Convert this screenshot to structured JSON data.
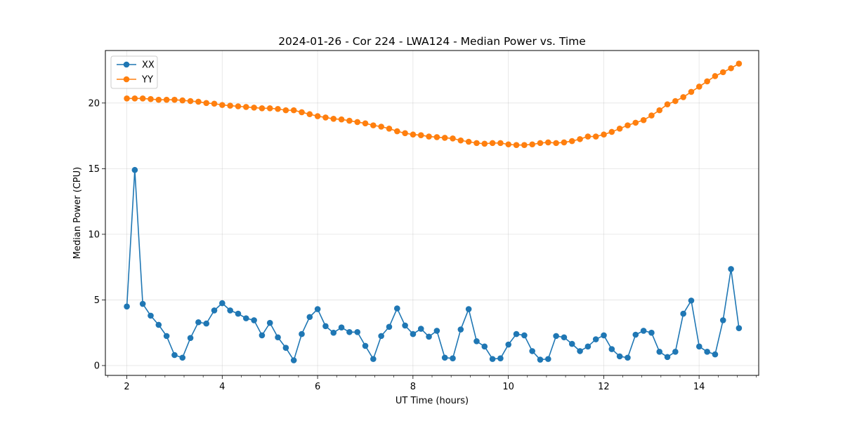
{
  "chart_data": {
    "type": "line",
    "title": "2024-01-26 - Cor 224 - LWA124 - Median Power vs. Time",
    "xlabel": "UT Time (hours)",
    "ylabel": "Median Power (CPU)",
    "xlim": [
      1.55,
      15.25
    ],
    "ylim": [
      -0.75,
      24.0
    ],
    "xticks": [
      2,
      4,
      6,
      8,
      10,
      12,
      14
    ],
    "yticks": [
      0,
      5,
      10,
      15,
      20
    ],
    "grid": true,
    "legend_position": "top-left",
    "x_start": 2.0,
    "x_step": 0.1667,
    "series": [
      {
        "name": "XX",
        "color": "#1f77b4",
        "values": [
          4.5,
          14.9,
          4.7,
          3.8,
          3.1,
          2.25,
          0.8,
          0.6,
          2.1,
          3.3,
          3.2,
          4.2,
          4.75,
          4.2,
          3.95,
          3.6,
          3.45,
          2.3,
          3.25,
          2.15,
          1.35,
          0.4,
          2.4,
          3.7,
          4.3,
          3.0,
          2.5,
          2.9,
          2.55,
          2.55,
          1.5,
          0.5,
          2.25,
          2.95,
          4.35,
          3.05,
          2.4,
          2.8,
          2.2,
          2.65,
          0.6,
          0.55,
          2.75,
          4.3,
          1.85,
          1.45,
          0.5,
          0.55,
          1.6,
          2.4,
          2.3,
          1.1,
          0.45,
          0.5,
          2.25,
          2.15,
          1.65,
          1.1,
          1.45,
          2.0,
          2.3,
          1.25,
          0.7,
          0.6,
          2.35,
          2.65,
          2.5,
          1.05,
          0.65,
          1.05,
          3.95,
          4.95,
          1.45,
          1.05,
          0.85,
          3.45,
          7.35,
          2.85
        ]
      },
      {
        "name": "YY",
        "color": "#ff7f0e",
        "values": [
          20.35,
          20.35,
          20.35,
          20.3,
          20.25,
          20.25,
          20.25,
          20.2,
          20.15,
          20.1,
          20.0,
          19.95,
          19.85,
          19.8,
          19.75,
          19.7,
          19.65,
          19.6,
          19.6,
          19.55,
          19.45,
          19.45,
          19.3,
          19.15,
          19.0,
          18.9,
          18.8,
          18.75,
          18.65,
          18.55,
          18.45,
          18.3,
          18.2,
          18.05,
          17.85,
          17.7,
          17.6,
          17.55,
          17.45,
          17.4,
          17.35,
          17.3,
          17.15,
          17.05,
          16.95,
          16.9,
          16.95,
          16.95,
          16.85,
          16.8,
          16.8,
          16.85,
          16.95,
          17.0,
          16.95,
          17.0,
          17.1,
          17.25,
          17.45,
          17.45,
          17.6,
          17.8,
          18.05,
          18.3,
          18.5,
          18.7,
          19.05,
          19.45,
          19.9,
          20.15,
          20.45,
          20.85,
          21.25,
          21.65,
          22.05,
          22.35,
          22.65,
          23.0
        ]
      }
    ]
  }
}
